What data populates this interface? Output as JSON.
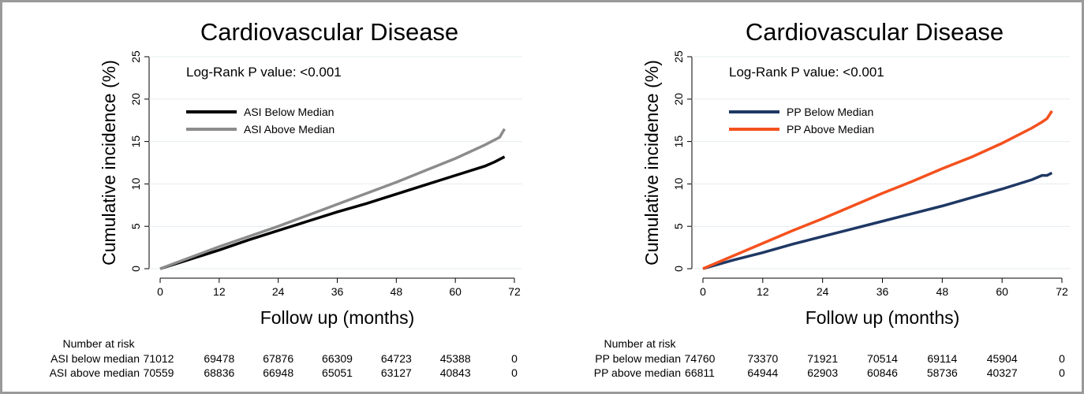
{
  "chart_data": [
    {
      "type": "line",
      "title": "Cardiovascular Disease",
      "annotation": "Log-Rank P value: <0.001",
      "x_label": "Follow up (months)",
      "y_label": "Cumulative incidence (%)",
      "x": [
        0,
        6,
        12,
        18,
        24,
        30,
        36,
        42,
        48,
        54,
        60,
        66,
        68,
        69,
        70
      ],
      "series": [
        {
          "name": "ASI Below Median",
          "color": "#000000",
          "values": [
            0,
            1.1,
            2.2,
            3.4,
            4.5,
            5.6,
            6.7,
            7.7,
            8.8,
            9.9,
            11.0,
            12.1,
            12.6,
            12.9,
            13.2
          ]
        },
        {
          "name": "ASI Above Median",
          "color": "#8c8c8c",
          "values": [
            0,
            1.3,
            2.6,
            3.8,
            5.0,
            6.3,
            7.6,
            8.9,
            10.2,
            11.6,
            13.0,
            14.6,
            15.2,
            15.5,
            16.5
          ]
        }
      ],
      "xlim": [
        0,
        72
      ],
      "xticks": [
        0,
        12,
        24,
        36,
        48,
        60,
        72
      ],
      "ylim": [
        0,
        25
      ],
      "yticks": [
        0,
        5,
        10,
        15,
        20,
        25
      ],
      "grid": true,
      "legend": "upper left",
      "risk_table": {
        "title": "Number at risk",
        "rows": [
          {
            "name": "ASI below median",
            "values": [
              71012,
              69478,
              67876,
              66309,
              64723,
              45388,
              0
            ]
          },
          {
            "name": "ASI above median",
            "values": [
              70559,
              68836,
              66948,
              65051,
              63127,
              40843,
              0
            ]
          }
        ]
      }
    },
    {
      "type": "line",
      "title": "Cardiovascular Disease",
      "annotation": "Log-Rank P value: <0.001",
      "x_label": "Follow up (months)",
      "y_label": "Cumulative incidence (%)",
      "x": [
        0,
        6,
        12,
        18,
        24,
        30,
        36,
        42,
        48,
        54,
        60,
        66,
        68,
        69,
        70
      ],
      "series": [
        {
          "name": "PP Below Median",
          "color": "#1f3864",
          "values": [
            0,
            1.0,
            1.9,
            2.9,
            3.8,
            4.7,
            5.6,
            6.5,
            7.4,
            8.4,
            9.4,
            10.5,
            11.0,
            11.0,
            11.3
          ]
        },
        {
          "name": "PP Above Median",
          "color": "#f4511e",
          "values": [
            0,
            1.5,
            3.0,
            4.5,
            5.9,
            7.4,
            8.9,
            10.3,
            11.8,
            13.2,
            14.8,
            16.6,
            17.3,
            17.7,
            18.6
          ]
        }
      ],
      "xlim": [
        0,
        72
      ],
      "xticks": [
        0,
        12,
        24,
        36,
        48,
        60,
        72
      ],
      "ylim": [
        0,
        25
      ],
      "yticks": [
        0,
        5,
        10,
        15,
        20,
        25
      ],
      "grid": true,
      "legend": "upper left",
      "risk_table": {
        "title": "Number at risk",
        "rows": [
          {
            "name": "PP below median",
            "values": [
              74760,
              73370,
              71921,
              70514,
              69114,
              45904,
              0
            ]
          },
          {
            "name": "PP above median",
            "values": [
              66811,
              64944,
              62903,
              60846,
              58736,
              40327,
              0
            ]
          }
        ]
      }
    }
  ]
}
